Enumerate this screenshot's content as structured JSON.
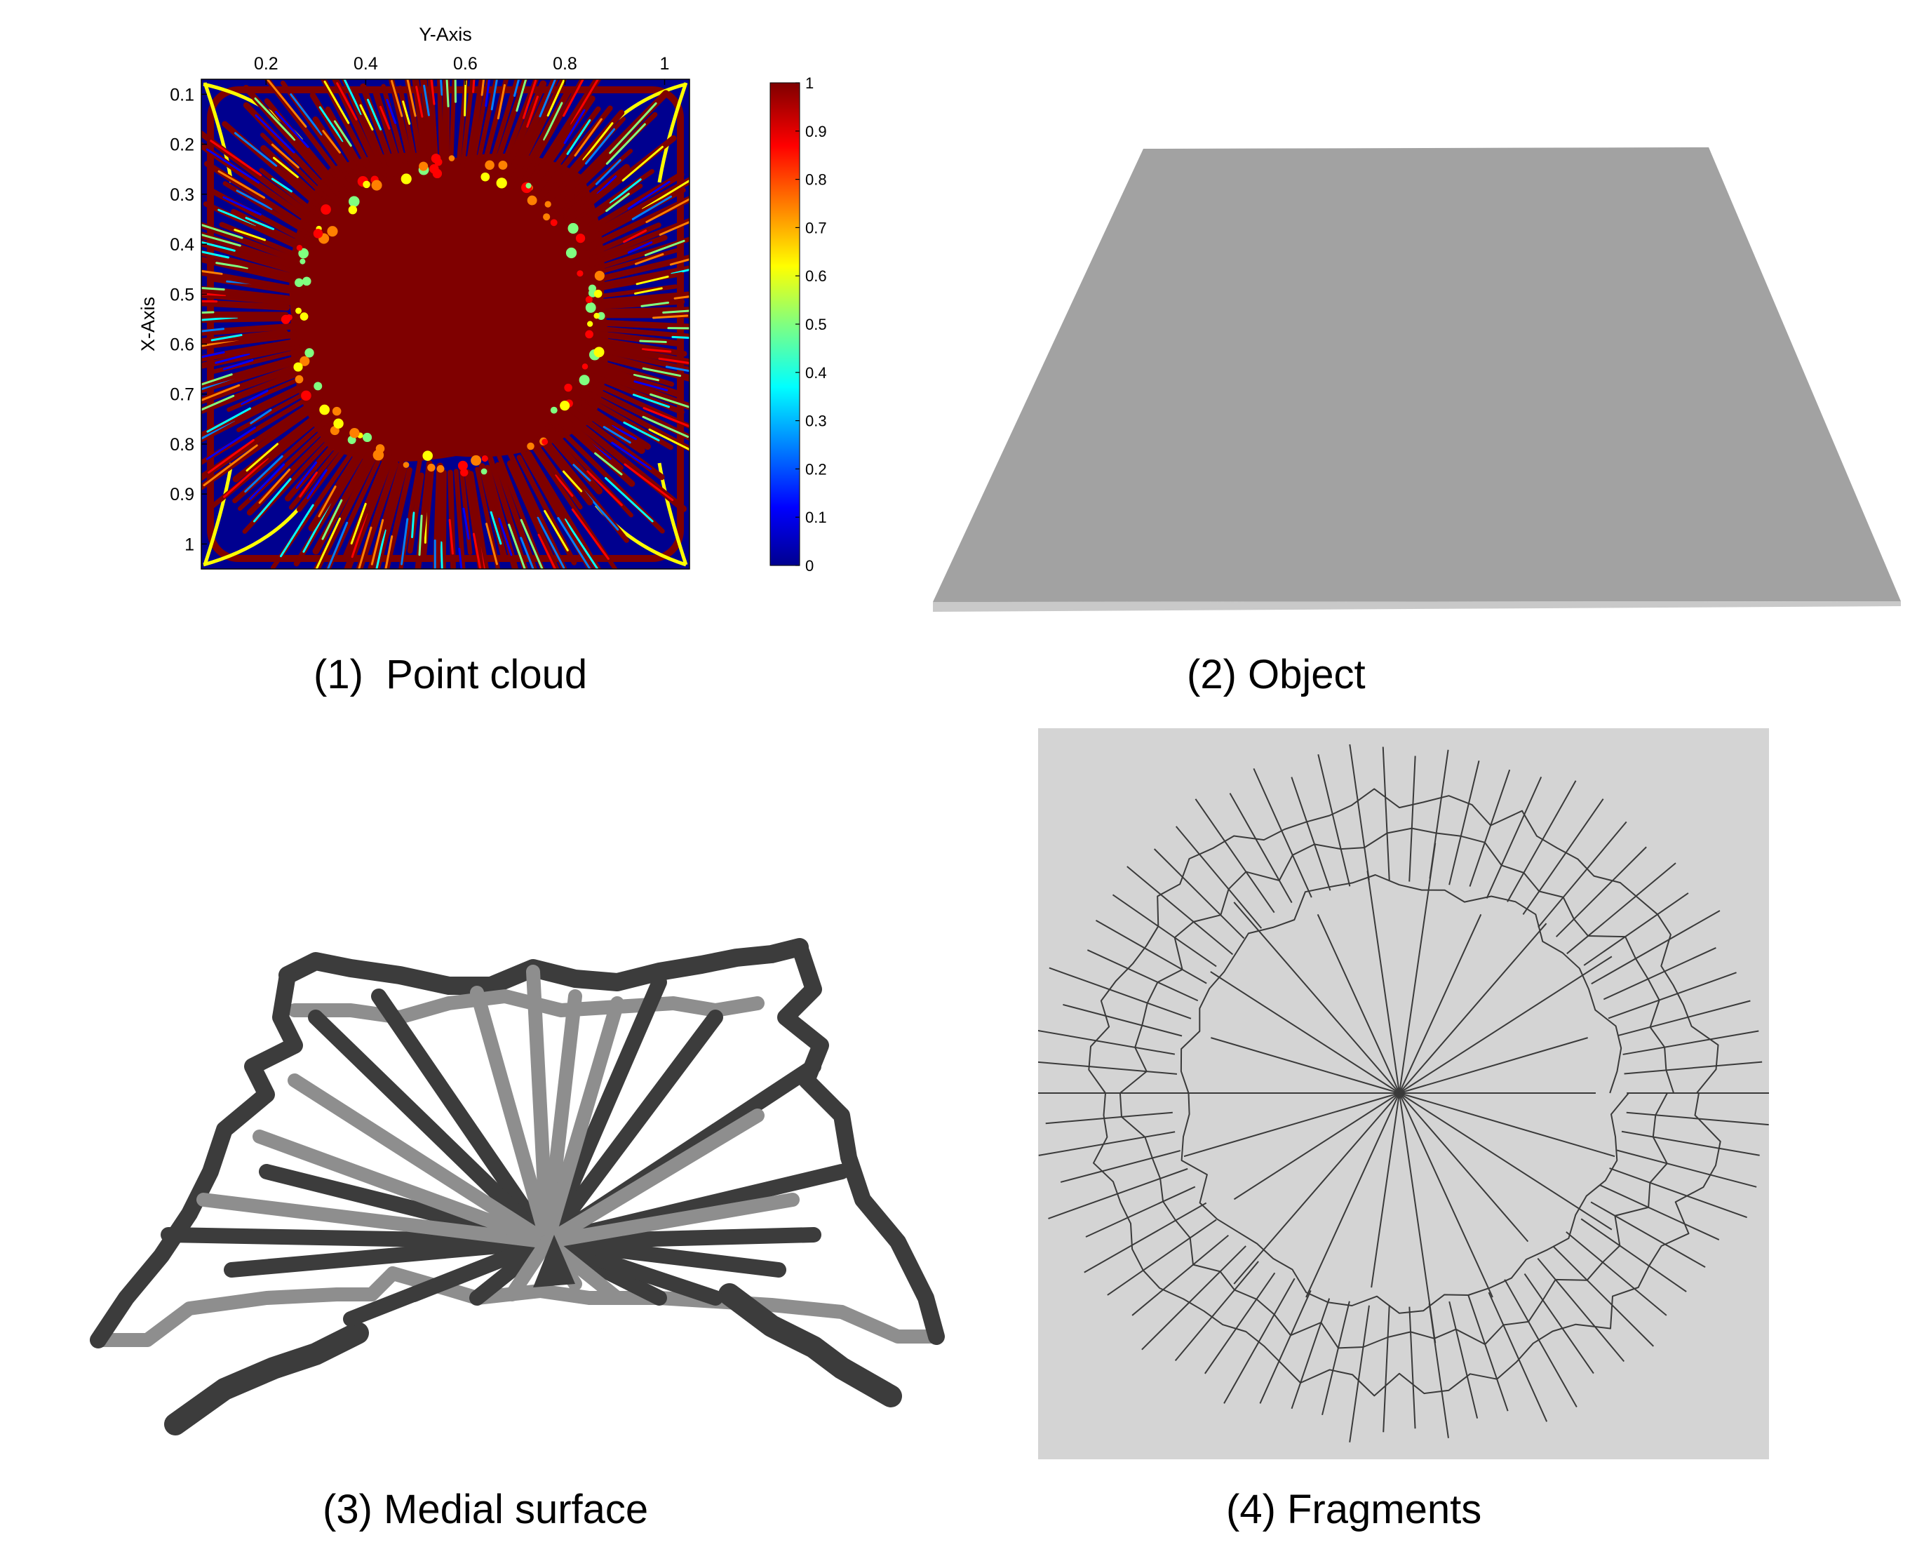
{
  "figure": {
    "captions": {
      "point_cloud": "(1)  Point cloud",
      "object": "(2) Object",
      "medial_surface": "(3) Medial surface",
      "fragments": "(4) Fragments"
    }
  },
  "heatmap": {
    "x_axis_title": "Y-Axis",
    "y_axis_title": "X-Axis",
    "x_ticks": [
      "0.2",
      "0.4",
      "0.6",
      "0.8",
      "1"
    ],
    "y_ticks": [
      "0.1",
      "0.2",
      "0.3",
      "0.4",
      "0.5",
      "0.6",
      "0.7",
      "0.8",
      "0.9",
      "1"
    ],
    "colorbar_ticks": [
      "1",
      "0.9",
      "0.8",
      "0.7",
      "0.6",
      "0.5",
      "0.4",
      "0.3",
      "0.2",
      "0.1",
      "0"
    ],
    "colormap": "jet",
    "colors": {
      "low": "#00008f",
      "high": "#7f0000"
    }
  },
  "object": {
    "color": "#a2a2a2",
    "edge_color": "#c9c9c9"
  },
  "medial": {
    "dark_color": "#3c3c3c",
    "light_color": "#8e8e8e"
  },
  "fragments": {
    "background": "#d4d4d4",
    "line_color": "#3a3a3a"
  },
  "chart_data": {
    "type": "heatmap",
    "xlabel": "Y-Axis",
    "ylabel": "X-Axis",
    "x_ticks": [
      0.2,
      0.4,
      0.6,
      0.8,
      1
    ],
    "y_ticks": [
      0.1,
      0.2,
      0.3,
      0.4,
      0.5,
      0.6,
      0.7,
      0.8,
      0.9,
      1
    ],
    "xlim": [
      0.07,
      1.05
    ],
    "ylim": [
      0.07,
      1.05
    ],
    "y_reversed": true,
    "colorbar_range": [
      0,
      1
    ],
    "colorbar_ticks": [
      0,
      0.1,
      0.2,
      0.3,
      0.4,
      0.5,
      0.6,
      0.7,
      0.8,
      0.9,
      1
    ],
    "colormap": "jet",
    "grid": false
  }
}
